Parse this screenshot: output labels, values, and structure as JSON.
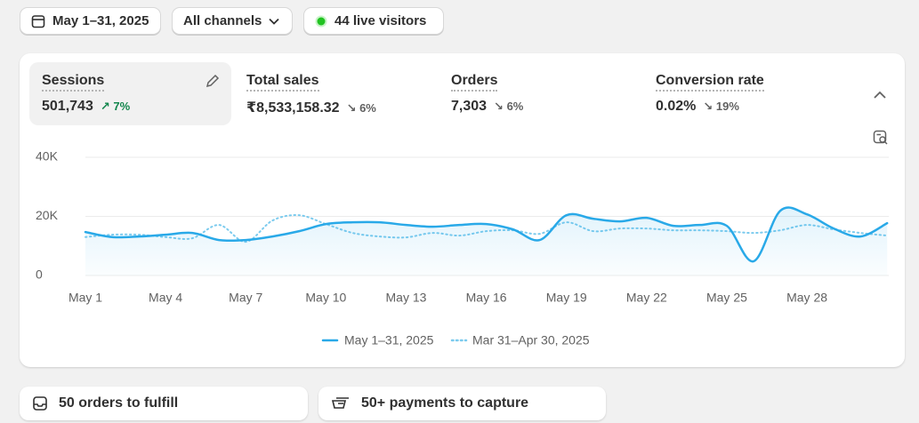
{
  "toolbar": {
    "date_range": "May 1–31, 2025",
    "channels": "All channels",
    "live_visitors": "44 live visitors"
  },
  "metrics": [
    {
      "label": "Sessions",
      "value": "501,743",
      "change": "7%",
      "direction": "up",
      "selected": true
    },
    {
      "label": "Total sales",
      "value": "₹8,533,158.32",
      "change": "6%",
      "direction": "down",
      "selected": false
    },
    {
      "label": "Orders",
      "value": "7,303",
      "change": "6%",
      "direction": "down",
      "selected": false
    },
    {
      "label": "Conversion rate",
      "value": "0.02%",
      "change": "19%",
      "direction": "down",
      "selected": false
    }
  ],
  "chart_data": {
    "type": "line",
    "x": [
      "May 1",
      null,
      null,
      "May 4",
      null,
      null,
      "May 7",
      null,
      null,
      "May 10",
      null,
      null,
      "May 13",
      null,
      null,
      "May 16",
      null,
      null,
      "May 19",
      null,
      null,
      "May 22",
      null,
      null,
      "May 25",
      null,
      null,
      "May 28",
      null,
      null,
      null
    ],
    "series": [
      {
        "name": "May 1–31, 2025",
        "color": "#29a9e8",
        "style": "solid",
        "values": [
          14700,
          13000,
          13200,
          13800,
          14400,
          12000,
          12000,
          13200,
          15000,
          17400,
          18000,
          18000,
          17100,
          16500,
          17100,
          17400,
          15600,
          12000,
          20400,
          19200,
          18300,
          19500,
          16800,
          17100,
          16800,
          4800,
          21900,
          20700,
          15900,
          13200,
          17700
        ]
      },
      {
        "name": "Mar 31–Apr 30, 2025",
        "color": "#7ccbee",
        "style": "dotted",
        "values": [
          13000,
          13800,
          13800,
          13000,
          12600,
          17100,
          11400,
          18600,
          20400,
          17400,
          14400,
          13200,
          12900,
          14400,
          13500,
          15000,
          15300,
          14100,
          18000,
          15000,
          15900,
          15900,
          15300,
          15300,
          15000,
          14400,
          15300,
          17100,
          15600,
          14400,
          13500
        ]
      }
    ],
    "ylim": [
      0,
      40000
    ],
    "yticks": [
      0,
      {
        "value": 20000,
        "label": "20K"
      },
      {
        "value": 40000,
        "label": "40K"
      }
    ],
    "grid": true
  },
  "bottom_cards": [
    "50 orders to fulfill",
    "50+ payments to capture"
  ]
}
